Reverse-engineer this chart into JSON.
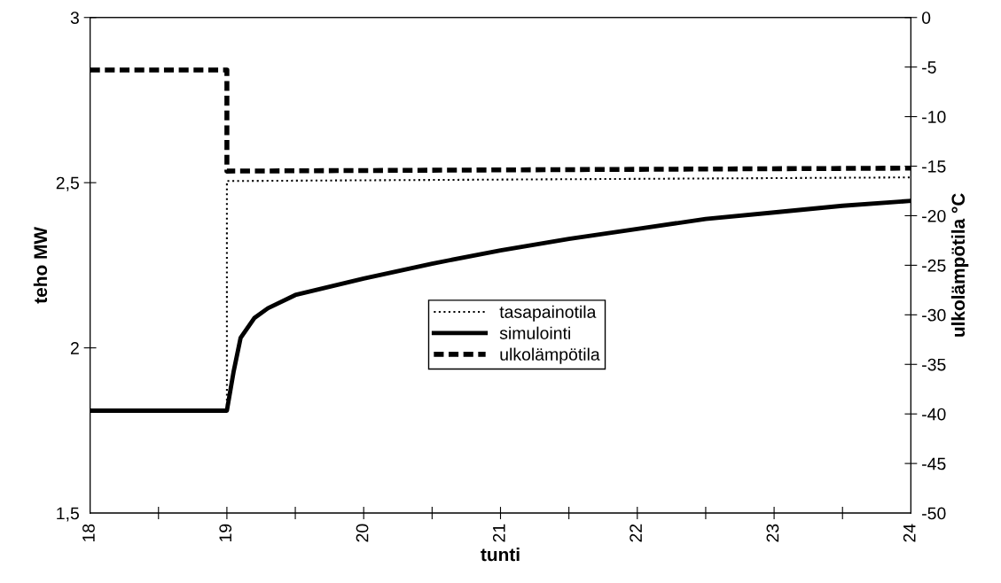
{
  "chart_data": {
    "type": "line",
    "xlabel": "tunti",
    "ylabel": "teho MW",
    "y2label": "ulkolämpötila °C",
    "xlim": [
      18,
      24
    ],
    "ylim": [
      1.5,
      3
    ],
    "y2lim": [
      -50,
      0
    ],
    "xticks": [
      18,
      {
        "value": 18.5,
        "label": null
      },
      19,
      {
        "value": 19.5,
        "label": null
      },
      20,
      {
        "value": 20.5,
        "label": null
      },
      21,
      {
        "value": 21.5,
        "label": null
      },
      22,
      {
        "value": 22.5,
        "label": null
      },
      23,
      {
        "value": 23.5,
        "label": null
      },
      24
    ],
    "yticks": [
      {
        "value": 1.5,
        "label": "1,5"
      },
      2,
      {
        "value": 2.5,
        "label": "2,5"
      },
      3
    ],
    "y2ticks": [
      -50,
      -45,
      -40,
      -35,
      -30,
      -25,
      -20,
      -15,
      -10,
      -5,
      0
    ],
    "grid": false,
    "legend": "center",
    "marker": "none",
    "series": [
      {
        "name": "tasapainotila",
        "color": "#000000",
        "line_style": "dotted",
        "x": [
          18,
          19,
          19,
          24
        ],
        "values": [
          1.81,
          1.81,
          2.505,
          2.516
        ]
      },
      {
        "name": "simulointi",
        "color": "#000000",
        "line_style": "solid",
        "x": [
          18,
          19,
          19.05,
          19.1,
          19.2,
          19.3,
          19.5,
          20,
          20.5,
          21,
          21.5,
          22,
          22.5,
          23,
          23.5,
          24
        ],
        "values": [
          1.81,
          1.81,
          1.93,
          2.03,
          2.09,
          2.12,
          2.16,
          2.21,
          2.255,
          2.295,
          2.33,
          2.36,
          2.39,
          2.41,
          2.43,
          2.445
        ]
      },
      {
        "name": "ulkolämpötila",
        "color": "#000000",
        "line_style": "dashed",
        "axis": "y2",
        "x": [
          18,
          19,
          19,
          24
        ],
        "values": [
          -5.3,
          -5.3,
          -15.5,
          -15.2
        ]
      }
    ]
  }
}
